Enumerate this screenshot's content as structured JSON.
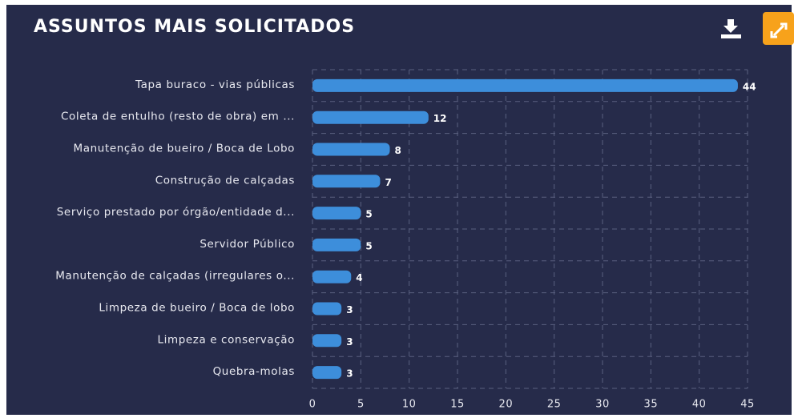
{
  "chart_data": {
    "type": "bar",
    "orientation": "horizontal",
    "title": "ASSUNTOS  MAIS  SOLICITADOS",
    "categories": [
      "Tapa buraco - vias públicas",
      "Coleta de entulho (resto de obra) em ...",
      "Manutenção de bueiro / Boca de Lobo",
      "Construção de calçadas",
      "Serviço prestado por órgão/entidade d...",
      "Servidor Público",
      "Manutenção de calçadas (irregulares o...",
      "Limpeza de bueiro / Boca de lobo",
      "Limpeza e conservação",
      "Quebra-molas"
    ],
    "values": [
      44,
      12,
      8,
      7,
      5,
      5,
      4,
      3,
      3,
      3
    ],
    "color": "#3d8edb",
    "xlim": [
      0,
      45
    ],
    "xticks": [
      0,
      5,
      10,
      15,
      20,
      25,
      30,
      35,
      40,
      45
    ],
    "grid": true
  }
}
